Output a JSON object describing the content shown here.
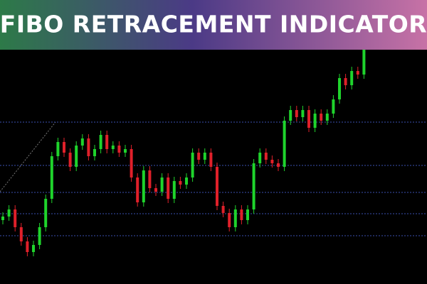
{
  "chart_data": {
    "type": "candlestick",
    "title": "FIBO RETRACEMENT INDICATOR",
    "ylim": [
      0,
      330
    ],
    "up_color": "#1fd42c",
    "down_color": "#e0202a",
    "level_color": "#3a4fb0",
    "levels": [
      228,
      167,
      129,
      99,
      68
    ],
    "open": [
      90,
      95,
      105,
      80,
      60,
      45,
      55,
      80,
      120,
      180,
      200,
      185,
      165,
      195,
      205,
      180,
      190,
      210,
      190,
      195,
      185,
      190,
      150,
      115,
      160,
      135,
      130,
      150,
      120,
      145,
      140,
      150,
      185,
      175,
      185,
      165,
      110,
      100,
      80,
      105,
      90,
      105,
      170,
      185,
      175,
      170,
      165,
      230,
      245,
      235,
      245,
      220,
      240,
      230,
      240,
      260,
      290,
      280,
      300,
      295
    ],
    "close": [
      95,
      105,
      80,
      60,
      45,
      55,
      80,
      120,
      180,
      200,
      185,
      165,
      195,
      205,
      180,
      190,
      210,
      190,
      195,
      185,
      190,
      150,
      115,
      160,
      135,
      130,
      150,
      120,
      145,
      140,
      150,
      185,
      175,
      185,
      165,
      110,
      100,
      80,
      105,
      90,
      105,
      170,
      185,
      175,
      170,
      165,
      230,
      245,
      235,
      245,
      220,
      240,
      230,
      240,
      260,
      290,
      280,
      300,
      295,
      330
    ],
    "high": [
      101,
      111,
      111,
      86,
      66,
      61,
      86,
      126,
      186,
      206,
      206,
      191,
      201,
      211,
      211,
      196,
      216,
      216,
      201,
      201,
      196,
      196,
      156,
      166,
      166,
      141,
      156,
      156,
      151,
      151,
      156,
      191,
      191,
      191,
      191,
      171,
      116,
      106,
      111,
      111,
      111,
      176,
      191,
      191,
      181,
      176,
      236,
      251,
      251,
      251,
      251,
      246,
      246,
      246,
      266,
      296,
      296,
      306,
      306,
      336
    ],
    "low": [
      84,
      89,
      74,
      54,
      39,
      39,
      49,
      74,
      114,
      174,
      179,
      159,
      159,
      189,
      174,
      174,
      184,
      184,
      184,
      179,
      179,
      144,
      109,
      109,
      129,
      124,
      124,
      114,
      114,
      134,
      134,
      144,
      169,
      169,
      159,
      104,
      94,
      74,
      74,
      84,
      84,
      99,
      164,
      169,
      164,
      159,
      159,
      224,
      229,
      229,
      214,
      214,
      224,
      224,
      234,
      254,
      274,
      274,
      289,
      289
    ]
  }
}
